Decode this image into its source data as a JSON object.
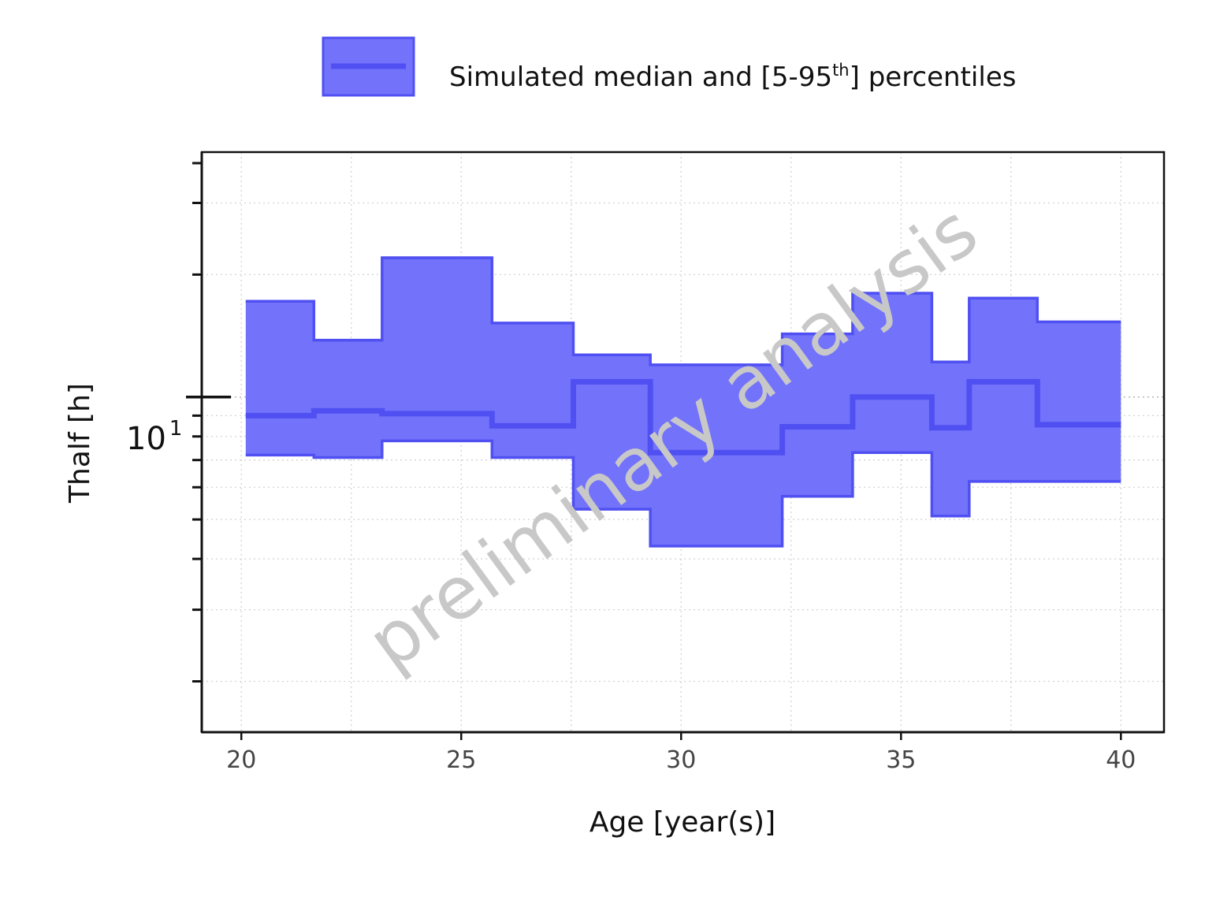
{
  "chart_data": {
    "type": "area",
    "xlabel": "Age [year(s)]",
    "ylabel": "Thalf [h]",
    "yscale": "log",
    "xlim": [
      19.1,
      40.98
    ],
    "ylim": [
      1.5,
      40
    ],
    "x_ticks": [
      20,
      25,
      30,
      35,
      40
    ],
    "x_tick_labels": [
      "20",
      "25",
      "30",
      "35",
      "40"
    ],
    "y_ticks": [
      10
    ],
    "y_tick_label": {
      "base": "10",
      "exponent": "1"
    },
    "grid": true,
    "legend": {
      "position": "top",
      "label": "Simulated median and [5-95",
      "label_sup": "th",
      "label_tail": "] percentiles"
    },
    "series": [
      {
        "name": "Simulated median and [5-95th] percentiles",
        "color": "#5050f2",
        "fill_color": "#7272fb",
        "step_x": [
          20.1,
          21.65,
          23.2,
          25.7,
          27.55,
          29.3,
          32.3,
          33.9,
          35.7,
          36.55,
          38.1,
          40.0
        ],
        "median": [
          9.0,
          9.25,
          9.1,
          8.5,
          10.9,
          7.3,
          8.45,
          10.0,
          8.4,
          10.9,
          8.55
        ],
        "p95": [
          17.2,
          13.8,
          22.0,
          15.2,
          12.7,
          12.0,
          14.3,
          18.0,
          12.2,
          17.5,
          15.3
        ],
        "p5": [
          7.2,
          7.1,
          7.8,
          7.1,
          5.3,
          4.3,
          5.7,
          7.3,
          5.1,
          6.2,
          6.2
        ]
      }
    ],
    "watermark": "preliminary analysis"
  }
}
